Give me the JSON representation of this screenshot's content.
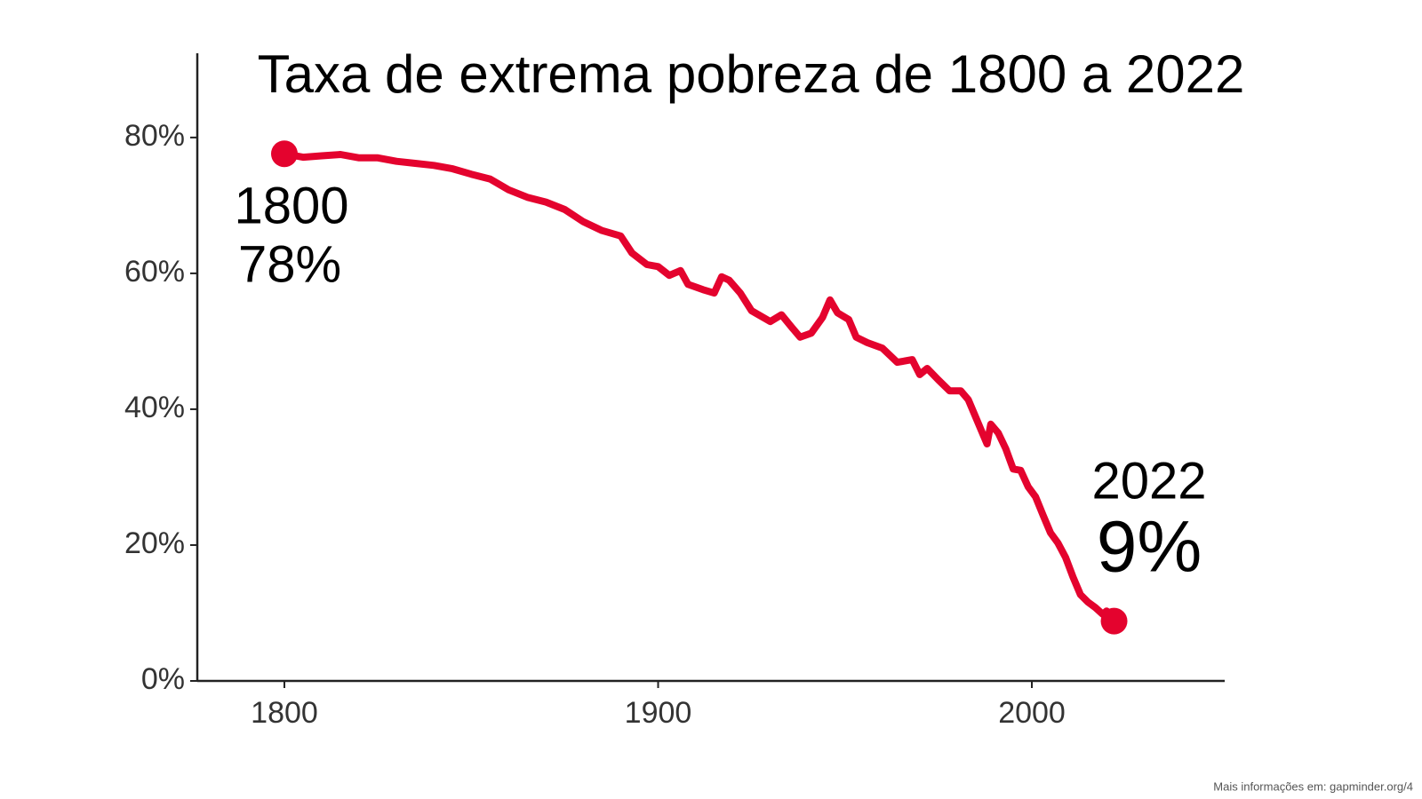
{
  "chart_data": {
    "type": "line",
    "title": "Taxa de extrema pobreza de 1800 a 2022",
    "x": [
      1800,
      1805,
      1810,
      1815,
      1820,
      1825,
      1830,
      1835,
      1840,
      1845,
      1850,
      1855,
      1860,
      1865,
      1870,
      1875,
      1880,
      1885,
      1890,
      1893,
      1897,
      1900,
      1903,
      1906,
      1908,
      1912,
      1915,
      1917,
      1919,
      1922,
      1925,
      1930,
      1933,
      1936,
      1938,
      1941,
      1944,
      1946,
      1948,
      1951,
      1953,
      1956,
      1960,
      1964,
      1968,
      1970,
      1972,
      1975,
      1978,
      1981,
      1983,
      1985,
      1987,
      1988,
      1989,
      1991,
      1993,
      1995,
      1997,
      1999,
      2001,
      2003,
      2005,
      2007,
      2009,
      2011,
      2013,
      2015,
      2017,
      2019,
      2020,
      2022
    ],
    "series": [
      {
        "name": "Taxa de extrema pobreza",
        "color": "#e4032e",
        "values": [
          77.6,
          77.1,
          77.3,
          77.5,
          77.0,
          77.0,
          76.5,
          76.2,
          75.9,
          75.4,
          74.6,
          73.9,
          72.3,
          71.2,
          70.5,
          69.4,
          67.6,
          66.3,
          65.5,
          63.0,
          61.3,
          61.0,
          59.7,
          60.4,
          58.4,
          57.6,
          57.1,
          59.5,
          59.0,
          57.1,
          54.5,
          52.9,
          53.9,
          51.9,
          50.6,
          51.2,
          53.5,
          56.1,
          54.2,
          53.2,
          50.6,
          49.8,
          49.0,
          46.9,
          47.3,
          45.1,
          46.0,
          44.3,
          42.7,
          42.7,
          41.4,
          38.8,
          36.2,
          34.9,
          37.8,
          36.5,
          34.2,
          31.2,
          31.0,
          28.6,
          27.1,
          24.4,
          21.8,
          20.3,
          18.2,
          15.3,
          12.7,
          11.6,
          10.8,
          9.8,
          10.3,
          8.8
        ]
      }
    ],
    "xlim": [
      1776.7,
      2051.6
    ],
    "xticks": [
      1800,
      1900,
      2000
    ],
    "ylim": [
      0,
      92.4
    ],
    "yticks": [
      {
        "value": 0,
        "label": "0%"
      },
      {
        "value": 20,
        "label": "20%"
      },
      {
        "value": 40,
        "label": "40%"
      },
      {
        "value": 60,
        "label": "60%"
      },
      {
        "value": 80,
        "label": "80%"
      }
    ],
    "annotations": [
      "1800",
      "78%",
      "2022",
      "9%"
    ],
    "source": "Mais informações em: gapminder.org/4",
    "grid": false
  }
}
